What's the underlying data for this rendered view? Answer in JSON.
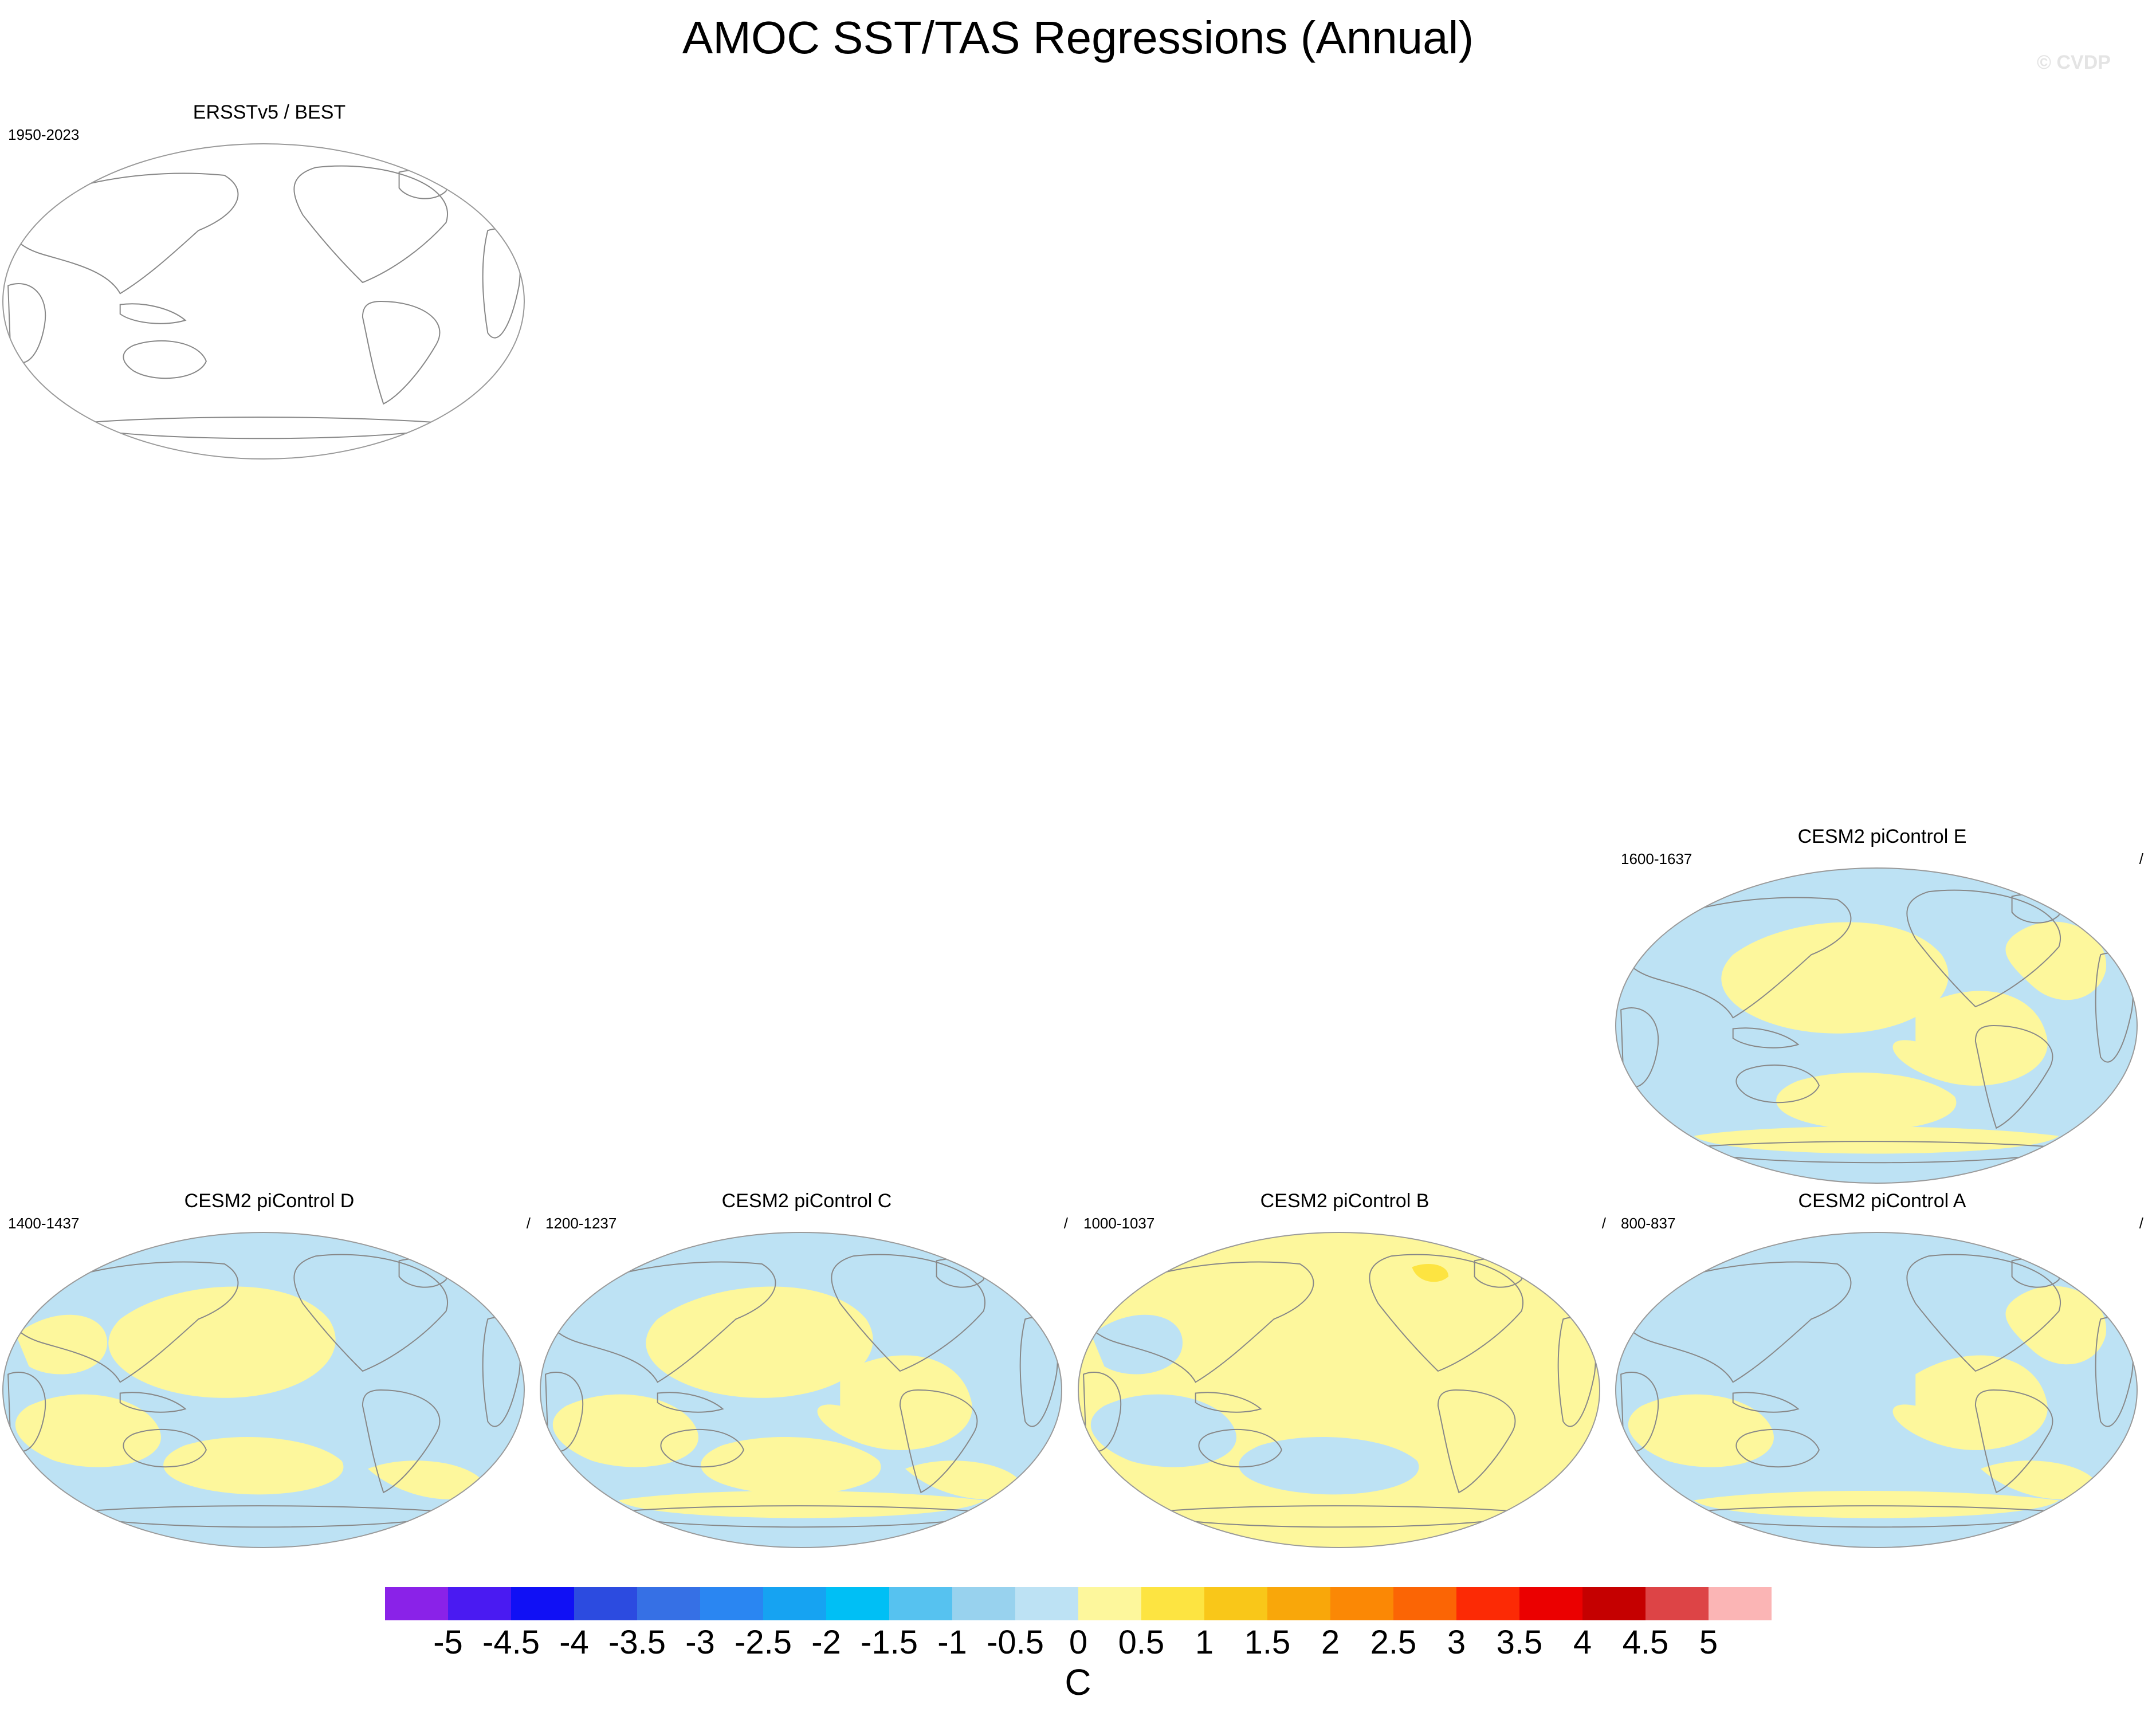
{
  "figure": {
    "title": "AMOC SST/TAS Regressions (Annual)",
    "watermark": "© CVDP"
  },
  "panels": [
    {
      "id": "obs",
      "title": "ERSSTv5 / BEST",
      "period": "1950-2023",
      "right": "",
      "filled": false
    },
    {
      "id": "E",
      "title": "CESM2 piControl E",
      "period": "1600-1637",
      "right": "/",
      "filled": true
    },
    {
      "id": "D",
      "title": "CESM2 piControl D",
      "period": "1400-1437",
      "right": "/",
      "filled": true
    },
    {
      "id": "C",
      "title": "CESM2 piControl C",
      "period": "1200-1237",
      "right": "/",
      "filled": true
    },
    {
      "id": "B",
      "title": "CESM2 piControl B",
      "period": "1000-1037",
      "right": "/",
      "filled": true
    },
    {
      "id": "A",
      "title": "CESM2 piControl A",
      "period": "800-837",
      "right": "/",
      "filled": true
    }
  ],
  "map_colors": {
    "negative_small": "#bde2f4",
    "positive_small": "#fdf79c",
    "positive_medium": "#fde441",
    "coastline": "#888888",
    "border": "#9a9a9a"
  },
  "colorbar": {
    "unit": "C",
    "labels": [
      "-5",
      "-4.5",
      "-4",
      "-3.5",
      "-3",
      "-2.5",
      "-2",
      "-1.5",
      "-1",
      "-0.5",
      "0",
      "0.5",
      "1",
      "1.5",
      "2",
      "2.5",
      "3",
      "3.5",
      "4",
      "4.5",
      "5"
    ],
    "colors": [
      "#8a22e8",
      "#4a1af2",
      "#1010f5",
      "#2c4be0",
      "#3670e5",
      "#2a86f2",
      "#16a3f2",
      "#00bff5",
      "#56c2f0",
      "#98d2ee",
      "#bde2f4",
      "#fdf79c",
      "#fde441",
      "#f9c719",
      "#f9a70a",
      "#fb8805",
      "#fb6505",
      "#fc2a05",
      "#eb0000",
      "#c50000",
      "#dd4446",
      "#fbb5b5"
    ]
  }
}
